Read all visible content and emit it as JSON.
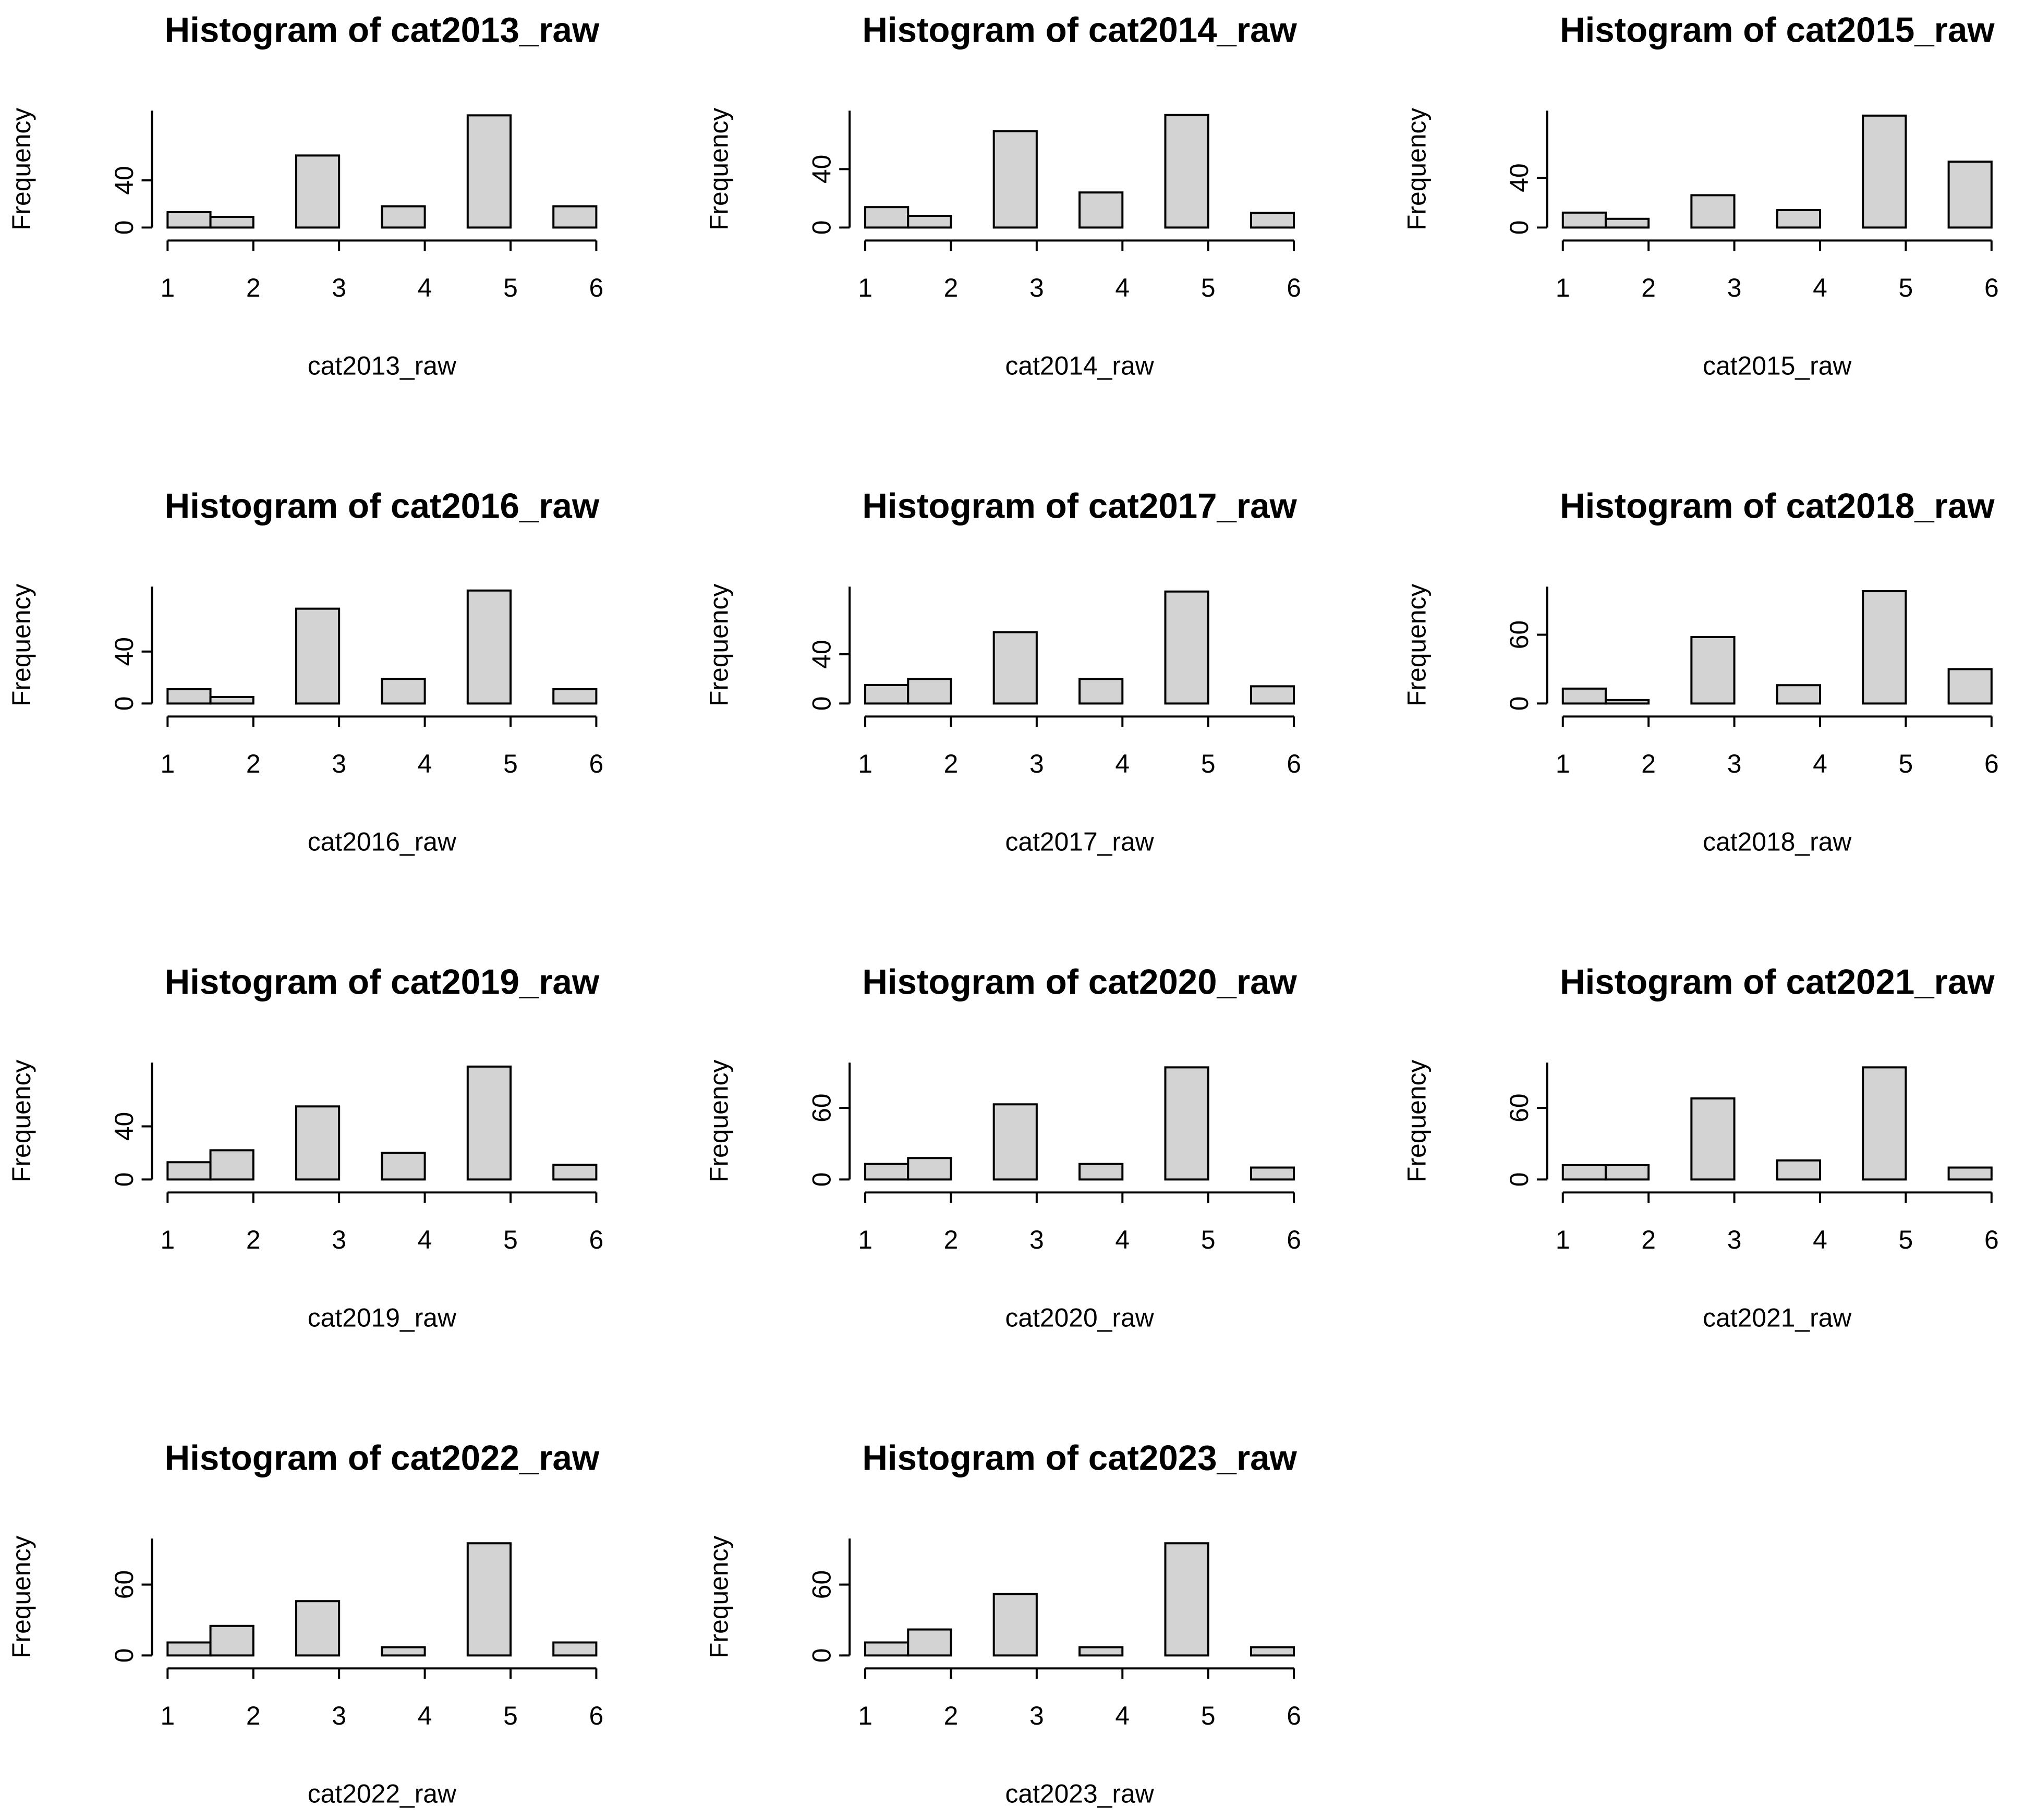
{
  "chart_data": [
    {
      "type": "histogram",
      "title": "Histogram of cat2013_raw",
      "xlabel": "cat2013_raw",
      "ylabel": "Frequency",
      "bins": [
        1,
        1.5,
        2,
        2.5,
        3,
        3.5,
        4,
        4.5,
        5,
        5.5,
        6
      ],
      "values": [
        13,
        9,
        0,
        61,
        0,
        18,
        0,
        95,
        0,
        18
      ],
      "color": "#d3d3d3",
      "xlim": [
        1,
        6
      ],
      "xticks": [
        1,
        2,
        3,
        4,
        5,
        6
      ],
      "ylim": [
        0,
        99
      ],
      "yticks": [
        0,
        40
      ]
    },
    {
      "type": "histogram",
      "title": "Histogram of cat2014_raw",
      "xlabel": "cat2014_raw",
      "ylabel": "Frequency",
      "bins": [
        1,
        1.5,
        2,
        2.5,
        3,
        3.5,
        4,
        4.5,
        5,
        5.5,
        6
      ],
      "values": [
        14,
        8,
        0,
        66,
        0,
        24,
        0,
        77,
        0,
        10
      ],
      "color": "#d3d3d3",
      "xlim": [
        1,
        6
      ],
      "xticks": [
        1,
        2,
        3,
        4,
        5,
        6
      ],
      "ylim": [
        0,
        80
      ],
      "yticks": [
        0,
        40
      ]
    },
    {
      "type": "histogram",
      "title": "Histogram of cat2015_raw",
      "xlabel": "cat2015_raw",
      "ylabel": "Frequency",
      "bins": [
        1,
        1.5,
        2,
        2.5,
        3,
        3.5,
        4,
        4.5,
        5,
        5.5,
        6
      ],
      "values": [
        12,
        7,
        0,
        26,
        0,
        14,
        0,
        90,
        0,
        53
      ],
      "color": "#d3d3d3",
      "xlim": [
        1,
        6
      ],
      "xticks": [
        1,
        2,
        3,
        4,
        5,
        6
      ],
      "ylim": [
        0,
        94
      ],
      "yticks": [
        0,
        40
      ]
    },
    {
      "type": "histogram",
      "title": "Histogram of cat2016_raw",
      "xlabel": "cat2016_raw",
      "ylabel": "Frequency",
      "bins": [
        1,
        1.5,
        2,
        2.5,
        3,
        3.5,
        4,
        4.5,
        5,
        5.5,
        6
      ],
      "values": [
        11,
        5,
        0,
        73,
        0,
        19,
        0,
        87,
        0,
        11
      ],
      "color": "#d3d3d3",
      "xlim": [
        1,
        6
      ],
      "xticks": [
        1,
        2,
        3,
        4,
        5,
        6
      ],
      "ylim": [
        0,
        90
      ],
      "yticks": [
        0,
        40
      ]
    },
    {
      "type": "histogram",
      "title": "Histogram of cat2017_raw",
      "xlabel": "cat2017_raw",
      "ylabel": "Frequency",
      "bins": [
        1,
        1.5,
        2,
        2.5,
        3,
        3.5,
        4,
        4.5,
        5,
        5.5,
        6
      ],
      "values": [
        15,
        20,
        0,
        58,
        0,
        20,
        0,
        91,
        0,
        14
      ],
      "color": "#d3d3d3",
      "xlim": [
        1,
        6
      ],
      "xticks": [
        1,
        2,
        3,
        4,
        5,
        6
      ],
      "ylim": [
        0,
        95
      ],
      "yticks": [
        0,
        40
      ]
    },
    {
      "type": "histogram",
      "title": "Histogram of cat2018_raw",
      "xlabel": "cat2018_raw",
      "ylabel": "Frequency",
      "bins": [
        1,
        1.5,
        2,
        2.5,
        3,
        3.5,
        4,
        4.5,
        5,
        5.5,
        6
      ],
      "values": [
        13,
        3,
        0,
        58,
        0,
        16,
        0,
        98,
        0,
        30
      ],
      "color": "#d3d3d3",
      "xlim": [
        1,
        6
      ],
      "xticks": [
        1,
        2,
        3,
        4,
        5,
        6
      ],
      "ylim": [
        0,
        102
      ],
      "yticks": [
        0,
        60
      ]
    },
    {
      "type": "histogram",
      "title": "Histogram of cat2019_raw",
      "xlabel": "cat2019_raw",
      "ylabel": "Frequency",
      "bins": [
        1,
        1.5,
        2,
        2.5,
        3,
        3.5,
        4,
        4.5,
        5,
        5.5,
        6
      ],
      "values": [
        13,
        22,
        0,
        55,
        0,
        20,
        0,
        85,
        0,
        11
      ],
      "color": "#d3d3d3",
      "xlim": [
        1,
        6
      ],
      "xticks": [
        1,
        2,
        3,
        4,
        5,
        6
      ],
      "ylim": [
        0,
        88
      ],
      "yticks": [
        0,
        40
      ]
    },
    {
      "type": "histogram",
      "title": "Histogram of cat2020_raw",
      "xlabel": "cat2020_raw",
      "ylabel": "Frequency",
      "bins": [
        1,
        1.5,
        2,
        2.5,
        3,
        3.5,
        4,
        4.5,
        5,
        5.5,
        6
      ],
      "values": [
        13,
        18,
        0,
        63,
        0,
        13,
        0,
        94,
        0,
        10
      ],
      "color": "#d3d3d3",
      "xlim": [
        1,
        6
      ],
      "xticks": [
        1,
        2,
        3,
        4,
        5,
        6
      ],
      "ylim": [
        0,
        98
      ],
      "yticks": [
        0,
        60
      ]
    },
    {
      "type": "histogram",
      "title": "Histogram of cat2021_raw",
      "xlabel": "cat2021_raw",
      "ylabel": "Frequency",
      "bins": [
        1,
        1.5,
        2,
        2.5,
        3,
        3.5,
        4,
        4.5,
        5,
        5.5,
        6
      ],
      "values": [
        12,
        12,
        0,
        68,
        0,
        16,
        0,
        94,
        0,
        10
      ],
      "color": "#d3d3d3",
      "xlim": [
        1,
        6
      ],
      "xticks": [
        1,
        2,
        3,
        4,
        5,
        6
      ],
      "ylim": [
        0,
        98
      ],
      "yticks": [
        0,
        60
      ]
    },
    {
      "type": "histogram",
      "title": "Histogram of cat2022_raw",
      "xlabel": "cat2022_raw",
      "ylabel": "Frequency",
      "bins": [
        1,
        1.5,
        2,
        2.5,
        3,
        3.5,
        4,
        4.5,
        5,
        5.5,
        6
      ],
      "values": [
        11,
        25,
        0,
        46,
        0,
        7,
        0,
        95,
        0,
        11
      ],
      "color": "#d3d3d3",
      "xlim": [
        1,
        6
      ],
      "xticks": [
        1,
        2,
        3,
        4,
        5,
        6
      ],
      "ylim": [
        0,
        99
      ],
      "yticks": [
        0,
        60
      ]
    },
    {
      "type": "histogram",
      "title": "Histogram of cat2023_raw",
      "xlabel": "cat2023_raw",
      "ylabel": "Frequency",
      "bins": [
        1,
        1.5,
        2,
        2.5,
        3,
        3.5,
        4,
        4.5,
        5,
        5.5,
        6
      ],
      "values": [
        11,
        22,
        0,
        52,
        0,
        7,
        0,
        95,
        0,
        7
      ],
      "color": "#d3d3d3",
      "xlim": [
        1,
        6
      ],
      "xticks": [
        1,
        2,
        3,
        4,
        5,
        6
      ],
      "ylim": [
        0,
        99
      ],
      "yticks": [
        0,
        60
      ]
    }
  ]
}
